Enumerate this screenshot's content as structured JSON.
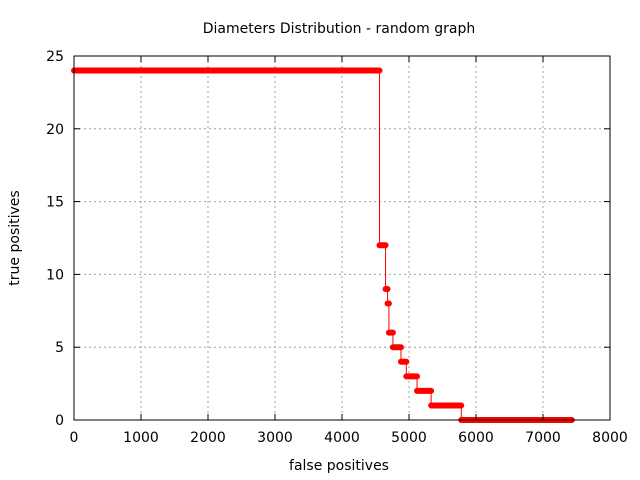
{
  "chart_data": {
    "type": "line",
    "title": "Diameters Distribution - random graph",
    "xlabel": "false positives",
    "ylabel": "true positives",
    "xlim": [
      0,
      8000
    ],
    "ylim": [
      0,
      25
    ],
    "xticks": [
      0,
      1000,
      2000,
      3000,
      4000,
      5000,
      6000,
      7000,
      8000
    ],
    "yticks": [
      0,
      5,
      10,
      15,
      20,
      25
    ],
    "xtick_labels": [
      "0",
      "1000",
      "2000",
      "3000",
      "4000",
      "5000",
      "6000",
      "7000",
      "8000"
    ],
    "ytick_labels": [
      "0",
      "5",
      "10",
      "15",
      "20",
      "25"
    ],
    "grid": true,
    "line_color": "#ff0000",
    "series": [
      {
        "segments": [
          {
            "x_start": 0,
            "x_end": 4560,
            "y": 24
          },
          {
            "x_start": 4560,
            "x_end": 4650,
            "y": 12
          },
          {
            "x_start": 4650,
            "x_end": 4680,
            "y": 9
          },
          {
            "x_start": 4680,
            "x_end": 4700,
            "y": 8
          },
          {
            "x_start": 4700,
            "x_end": 4760,
            "y": 6
          },
          {
            "x_start": 4760,
            "x_end": 4880,
            "y": 5
          },
          {
            "x_start": 4880,
            "x_end": 4960,
            "y": 4
          },
          {
            "x_start": 4960,
            "x_end": 5120,
            "y": 3
          },
          {
            "x_start": 5120,
            "x_end": 5330,
            "y": 2
          },
          {
            "x_start": 5330,
            "x_end": 5780,
            "y": 1
          },
          {
            "x_start": 5780,
            "x_end": 7430,
            "y": 0
          }
        ]
      }
    ]
  }
}
